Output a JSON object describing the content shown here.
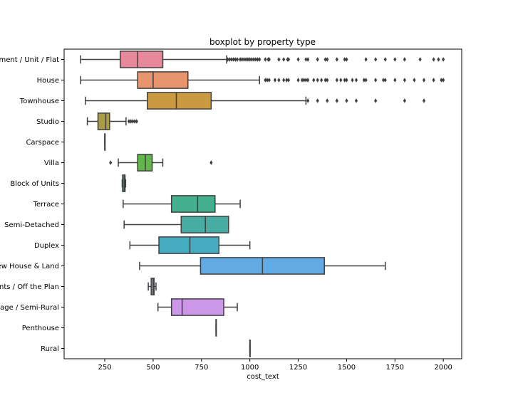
{
  "chart_data": {
    "type": "boxplot",
    "orientation": "horizontal",
    "title": "boxplot by property type",
    "xlabel": "cost_text",
    "ylabel": "",
    "xlim": [
      40,
      2095
    ],
    "xticks": [
      250,
      500,
      750,
      1000,
      1250,
      1500,
      1750,
      2000
    ],
    "grid": false,
    "categories": [
      {
        "label": "Apartment / Unit / Flat",
        "color": "#e8899b",
        "whislo": 125,
        "q1": 330,
        "median": 420,
        "q3": 550,
        "whishi": 880,
        "fliers": [
          885,
          895,
          905,
          915,
          925,
          935,
          950,
          960,
          970,
          980,
          990,
          1000,
          1010,
          1020,
          1030,
          1040,
          1050,
          1080,
          1095,
          1100,
          1150,
          1175,
          1195,
          1200,
          1250,
          1290,
          1300,
          1350,
          1390,
          1400,
          1450,
          1490,
          1500,
          1600,
          1650,
          1700,
          1750,
          1800,
          1880,
          1950,
          1975,
          2000
        ]
      },
      {
        "label": "House",
        "color": "#e6956c",
        "whislo": 125,
        "q1": 420,
        "median": 500,
        "q3": 680,
        "whishi": 1050,
        "fliers": [
          1080,
          1090,
          1100,
          1130,
          1150,
          1175,
          1190,
          1200,
          1250,
          1270,
          1280,
          1290,
          1300,
          1330,
          1350,
          1370,
          1390,
          1400,
          1450,
          1470,
          1490,
          1500,
          1530,
          1550,
          1590,
          1600,
          1650,
          1690,
          1700,
          1750,
          1800,
          1850,
          1900,
          1950,
          1990,
          2000
        ]
      },
      {
        "label": "Townhouse",
        "color": "#c99a42",
        "whislo": 150,
        "q1": 470,
        "median": 620,
        "q3": 800,
        "whishi": 1290,
        "fliers": [
          1300,
          1350,
          1400,
          1450,
          1500,
          1550,
          1650,
          1800,
          1900
        ]
      },
      {
        "label": "Studio",
        "color": "#aa9c45",
        "whislo": 160,
        "q1": 215,
        "median": 255,
        "q3": 275,
        "whishi": 360,
        "fliers": [
          375,
          385,
          395,
          405,
          415
        ]
      },
      {
        "label": "Carspace",
        "color": "#9ea53f",
        "whislo": 250,
        "q1": 250,
        "median": 250,
        "q3": 250,
        "whishi": 250,
        "fliers": []
      },
      {
        "label": "Villa",
        "color": "#63b64a",
        "whislo": 320,
        "q1": 420,
        "median": 460,
        "q3": 495,
        "whishi": 550,
        "fliers": [
          280,
          800
        ]
      },
      {
        "label": "Block of Units",
        "color": "#4fb685",
        "whislo": 340,
        "q1": 342,
        "median": 350,
        "q3": 355,
        "whishi": 358,
        "fliers": []
      },
      {
        "label": "Terrace",
        "color": "#45b08e",
        "whislo": 345,
        "q1": 595,
        "median": 730,
        "q3": 820,
        "whishi": 950,
        "fliers": []
      },
      {
        "label": "Semi-Detached",
        "color": "#47ada3",
        "whislo": 350,
        "q1": 645,
        "median": 770,
        "q3": 890,
        "whishi": 890,
        "fliers": []
      },
      {
        "label": "Duplex",
        "color": "#46acc1",
        "whislo": 380,
        "q1": 530,
        "median": 690,
        "q3": 840,
        "whishi": 1000,
        "fliers": []
      },
      {
        "label": "New House & Land",
        "color": "#62aae4",
        "whislo": 430,
        "q1": 745,
        "median": 1065,
        "q3": 1385,
        "whishi": 1700,
        "fliers": []
      },
      {
        "label": "Apartments / Off the Plan",
        "color": "#8f9ce8",
        "whislo": 475,
        "q1": 490,
        "median": 500,
        "q3": 505,
        "whishi": 515,
        "fliers": []
      },
      {
        "label": "Acreage / Semi-Rural",
        "color": "#cc97e8",
        "whislo": 525,
        "q1": 595,
        "median": 650,
        "q3": 865,
        "whishi": 935,
        "fliers": []
      },
      {
        "label": "Penthouse",
        "color": "#e08fd3",
        "whislo": 825,
        "q1": 825,
        "median": 825,
        "q3": 825,
        "whishi": 825,
        "fliers": []
      },
      {
        "label": "Rural",
        "color": "#ea8fb6",
        "whislo": 1000,
        "q1": 1000,
        "median": 1000,
        "q3": 1000,
        "whishi": 1000,
        "fliers": []
      }
    ]
  }
}
